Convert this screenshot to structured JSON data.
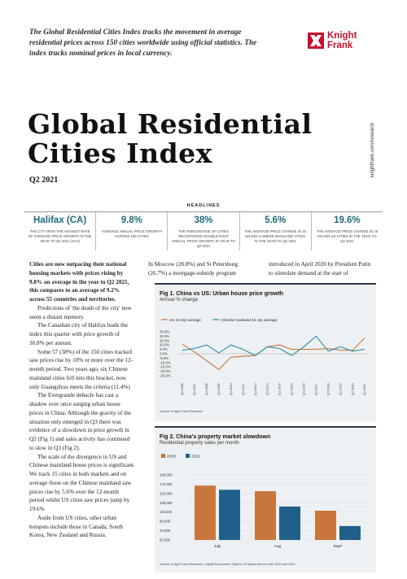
{
  "intro": "The Global Residential Cities Index tracks the movement in average residential prices across 150 cities worldwide using official statistics. The index tracks nominal prices in local currency.",
  "brand": {
    "line1": "Knight",
    "line2": "Frank",
    "color": "#c8102e",
    "icon": "knight-frank-logo-icon"
  },
  "sidebar_url": "knightfrank.com/research",
  "title_line1": "Global Residential",
  "title_line2": "Cities Index",
  "quarter": "Q2 2021",
  "headlines": {
    "label": "HEADLINES",
    "items": [
      {
        "value": "Halifax (CA)",
        "desc": "THE CITY WITH THE HIGHEST RATE OF AVERAGE PRICE GROWTH IN THE YEAR TO Q2 2021 (31%)"
      },
      {
        "value": "9.8%",
        "desc": "AVERAGE ANNUAL PRICE GROWTH ACROSS 150 CITIES"
      },
      {
        "value": "38%",
        "desc": "THE PERCENTAGE OF CITIES REGISTERING DOUBLE-DIGIT ANNUAL PRICE GROWTH IN YEAR TO Q2 2021"
      },
      {
        "value": "5.6%",
        "desc": "THE AVERAGE PRICE CHANGE IN 15 MAJOR CHINESE MAINLAND CITIES IN THE YEAR TO Q2 2021"
      },
      {
        "value": "19.6%",
        "desc": "THE AVERAGE PRICE CHANGE IN 15 MAJOR US CITIES IN THE YEAR TO Q2 2021"
      }
    ]
  },
  "body": {
    "lead": "Cities are now outpacing their national housing markets with prices rising by 9.8% on average in the year to Q2 2021, this compares to an average of 9.2% across 55 countries and territories.",
    "paragraphs": [
      "Predictions of 'the death of the city' now seem a distant memory.",
      "The Canadian city of Halifax leads the index this quarter with price growth of 30.8% per annum.",
      "Some 57 (38%) of the 150 cities tracked saw prices rise by 10% or more over the 12-month period. Two years ago, six Chinese mainland cities fell into this bracket, now only Guangzhou meets the criteria (11.4%)",
      "The Evergrande debacle has cast a shadow over once surging urban house prices in China. Although the gravity of the situation only emerged in Q3 there was evidence of a slowdown in price growth in Q2 (Fig 1) and sales activity has continued to slow in Q3 (Fig 2).",
      "The scale of the divergence in US and Chinese mainland house prices is significant. We track 15 cities in both markets and on average those on the Chinese mainland saw prices rise by 5.6% over the 12-month period whilst US cities saw prices jump by 19.6%",
      "Aside from US cities, other urban hotspots include those in Canada, South Korea, New Zealand and Russia."
    ],
    "col2_top": "In Moscow (28.8%) and St Petersburg (26.7%) a mortgage-subsidy program",
    "col3_top": "introduced in April 2020 by President Putin to stimulate demand at the start of"
  },
  "fig1": {
    "title": "Fig 1. China vs US: Urban house price growth",
    "subtitle": "Annual % change",
    "source": "Source: Knight Frank Research",
    "chart_data": {
      "type": "line",
      "x": [
        "Q1 2006",
        "Q1 2007",
        "Q1 2008",
        "Q1 2009",
        "Q1 2010",
        "Q1 2011",
        "Q1 2012",
        "Q1 2013",
        "Q1 2014",
        "Q1 2015",
        "Q1 2016",
        "Q1 2017",
        "Q1 2018",
        "Q1 2019",
        "Q1 2020",
        "Q1 2021"
      ],
      "ylim": [
        -25,
        25
      ],
      "yticks": [
        "25.0%",
        "20.0%",
        "15.0%",
        "10.0%",
        "5.0%",
        "0.0%",
        "-5.0%",
        "-10.0%",
        "-15.0%",
        "-20.0%",
        "-25.0%"
      ],
      "series": [
        {
          "name": "US 15 city average",
          "color": "#c8763c",
          "values": [
            11,
            2,
            -8,
            -18,
            -4,
            -3,
            -2,
            8,
            10,
            5,
            5,
            5,
            6,
            4,
            4,
            18
          ]
        },
        {
          "name": "Chinese mainland 15 city average",
          "color": "#2a8fa8",
          "values": [
            4,
            6,
            10,
            1,
            10,
            5,
            -2,
            8,
            6,
            -2,
            8,
            20,
            3,
            8,
            3,
            5
          ]
        }
      ]
    }
  },
  "fig2": {
    "title": "Fig 2. China's property market slowdown",
    "subtitle": "Residential property sales per month",
    "source": "Source: Knight Frank Research, Capital Economics  *Data to 23 September for both 2020 and 2021",
    "chart_data": {
      "type": "bar",
      "categories": [
        "July",
        "Aug",
        "Sept*"
      ],
      "ylim": [
        50000,
        190000
      ],
      "yticks": [
        "190,000",
        "170,000",
        "150,000",
        "130,000",
        "110,000",
        "90,000",
        "70,000",
        "50,000"
      ],
      "series": [
        {
          "name": "2020",
          "color": "#c8763c",
          "values": [
            167000,
            155000,
            113000
          ]
        },
        {
          "name": "2021",
          "color": "#1f5f8a",
          "values": [
            158000,
            122000,
            80000
          ]
        }
      ]
    }
  }
}
